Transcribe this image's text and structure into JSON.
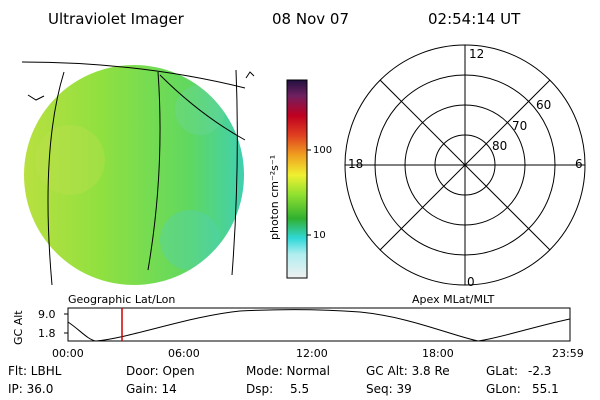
{
  "header": {
    "instrument": "Ultraviolet Imager",
    "date": "08 Nov 07",
    "time": "02:54:14 UT"
  },
  "image_panel": {
    "label": "Geographic Lat/Lon",
    "image_color": "#8ee04a"
  },
  "colorbar": {
    "unit_label": "photon cm⁻²s⁻¹",
    "tick_high": "100",
    "tick_low": "10",
    "colors_bottom_to_top": [
      "#f0f0f0",
      "#30d8d8",
      "#30b030",
      "#90e030",
      "#f0f030",
      "#f0a020",
      "#e04020",
      "#c00020",
      "#702060",
      "#201040"
    ]
  },
  "polar_panel": {
    "label": "Apex MLat/MLT",
    "mlt_top": "12",
    "mlt_left": "18",
    "mlt_right": "6",
    "mlt_bottom": "0",
    "lat_60": "60",
    "lat_70": "70",
    "lat_80": "80"
  },
  "altitude_plot": {
    "ylabel": "GC Alt",
    "y_ticks": [
      "9.0",
      "1.8"
    ],
    "x_ticks": [
      "00:00",
      "06:00",
      "12:00",
      "18:00",
      "23:59"
    ],
    "marker_color": "#d00000"
  },
  "status": {
    "filter": "Flt: LBHL",
    "ip": "IP: 36.0",
    "door": "Door: Open",
    "gain": "Gain: 14",
    "mode": "Mode: Normal",
    "dsp_label": "Dsp:",
    "dsp_value": "5.5",
    "gc_alt": "GC Alt: 3.8 Re",
    "seq": "Seq: 39",
    "glat_label": "GLat:",
    "glat_value": "-2.3",
    "glon_label": "GLon:",
    "glon_value": "55.1"
  }
}
